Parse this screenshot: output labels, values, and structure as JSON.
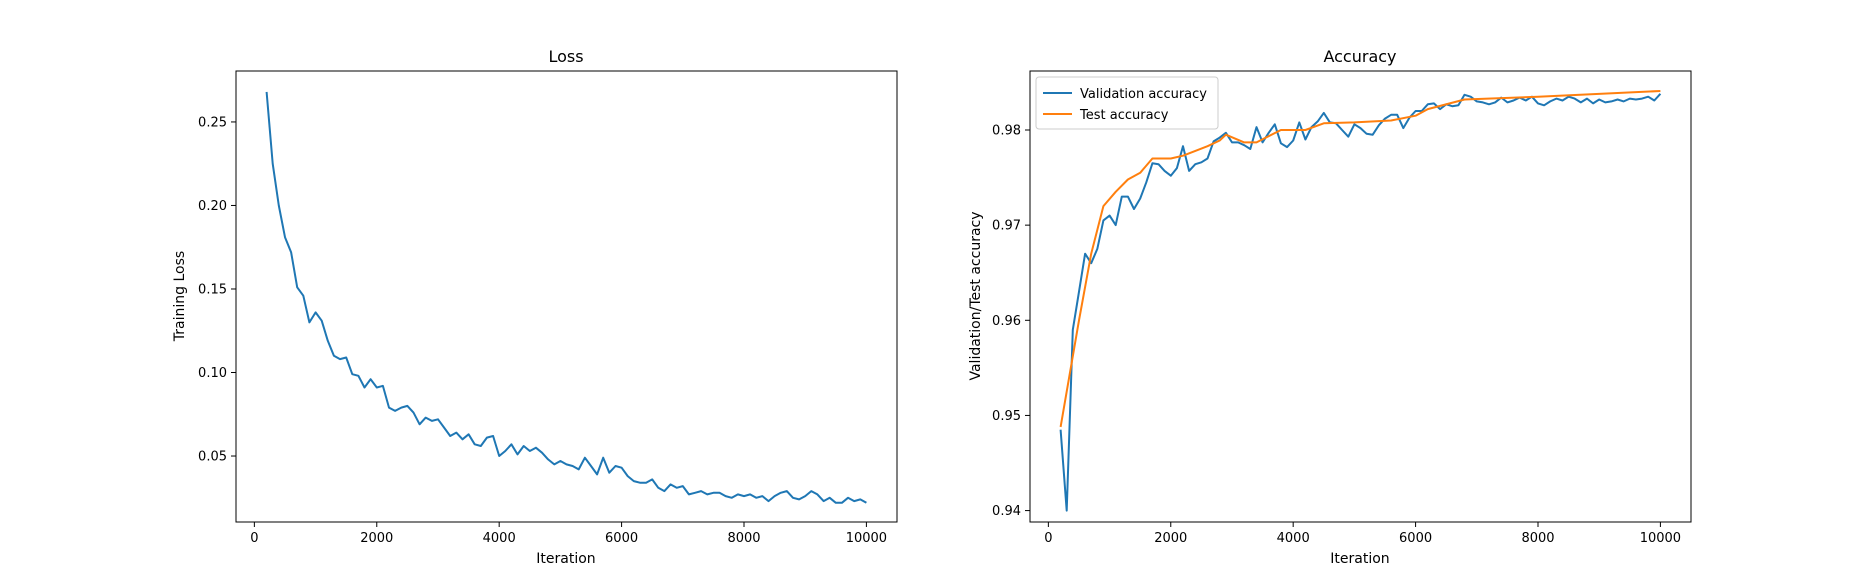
{
  "chart_data": [
    {
      "type": "line",
      "title": "Loss",
      "xlabel": "Iteration",
      "ylabel": "Training Loss",
      "xlim": [
        -300,
        10500
      ],
      "ylim": [
        0.0105,
        0.2805
      ],
      "xticks": [
        0,
        2000,
        4000,
        6000,
        8000,
        10000
      ],
      "xtick_labels": [
        "0",
        "2000",
        "4000",
        "6000",
        "8000",
        "10000"
      ],
      "yticks": [
        0.05,
        0.1,
        0.15,
        0.2,
        0.25
      ],
      "ytick_labels": [
        "0.05",
        "0.10",
        "0.15",
        "0.20",
        "0.25"
      ],
      "grid": false,
      "series": [
        {
          "color": "#1f77b4",
          "x": [
            200,
            300,
            400,
            500,
            600,
            700,
            800,
            900,
            1000,
            1100,
            1200,
            1300,
            1400,
            1500,
            1600,
            1700,
            1800,
            1900,
            2000,
            2100,
            2200,
            2300,
            2400,
            2500,
            2600,
            2700,
            2800,
            2900,
            3000,
            3100,
            3200,
            3300,
            3400,
            3500,
            3600,
            3700,
            3800,
            3900,
            4000,
            4100,
            4200,
            4300,
            4400,
            4500,
            4600,
            4700,
            4800,
            4900,
            5000,
            5100,
            5200,
            5300,
            5400,
            5500,
            5600,
            5700,
            5800,
            5900,
            6000,
            6100,
            6200,
            6300,
            6400,
            6500,
            6600,
            6700,
            6800,
            6900,
            7000,
            7100,
            7200,
            7300,
            7400,
            7500,
            7600,
            7700,
            7800,
            7900,
            8000,
            8100,
            8200,
            8300,
            8400,
            8500,
            8600,
            8700,
            8800,
            8900,
            9000,
            9100,
            9200,
            9300,
            9400,
            9500,
            9600,
            9700,
            9800,
            9900,
            10000
          ],
          "values": [
            0.268,
            0.225,
            0.2,
            0.181,
            0.172,
            0.151,
            0.146,
            0.13,
            0.136,
            0.131,
            0.119,
            0.11,
            0.108,
            0.109,
            0.099,
            0.098,
            0.091,
            0.096,
            0.091,
            0.092,
            0.079,
            0.077,
            0.079,
            0.08,
            0.076,
            0.069,
            0.073,
            0.071,
            0.072,
            0.067,
            0.062,
            0.064,
            0.06,
            0.063,
            0.057,
            0.056,
            0.061,
            0.062,
            0.05,
            0.053,
            0.057,
            0.051,
            0.056,
            0.053,
            0.055,
            0.052,
            0.048,
            0.045,
            0.047,
            0.045,
            0.044,
            0.042,
            0.049,
            0.044,
            0.039,
            0.049,
            0.04,
            0.044,
            0.043,
            0.038,
            0.035,
            0.034,
            0.034,
            0.036,
            0.031,
            0.029,
            0.033,
            0.031,
            0.032,
            0.027,
            0.028,
            0.029,
            0.027,
            0.028,
            0.028,
            0.026,
            0.025,
            0.027,
            0.026,
            0.027,
            0.025,
            0.026,
            0.023,
            0.026,
            0.028,
            0.029,
            0.025,
            0.024,
            0.026,
            0.029,
            0.027,
            0.023,
            0.025,
            0.022,
            0.022,
            0.025,
            0.023,
            0.024,
            0.022
          ]
        }
      ]
    },
    {
      "type": "line",
      "title": "Accuracy",
      "xlabel": "Iteration",
      "ylabel": "Validation/Test accuracy",
      "xlim": [
        -300,
        10500
      ],
      "ylim": [
        0.9388,
        0.9862
      ],
      "xticks": [
        0,
        2000,
        4000,
        6000,
        8000,
        10000
      ],
      "xtick_labels": [
        "0",
        "2000",
        "4000",
        "6000",
        "8000",
        "10000"
      ],
      "yticks": [
        0.94,
        0.95,
        0.96,
        0.97,
        0.98
      ],
      "ytick_labels": [
        "0.94",
        "0.95",
        "0.96",
        "0.97",
        "0.98"
      ],
      "grid": false,
      "legend_position": "top-left",
      "series": [
        {
          "name": "Validation accuracy",
          "color": "#1f77b4",
          "x": [
            200,
            300,
            400,
            500,
            600,
            700,
            800,
            900,
            1000,
            1100,
            1200,
            1300,
            1400,
            1500,
            1600,
            1700,
            1800,
            1900,
            2000,
            2100,
            2200,
            2300,
            2400,
            2500,
            2600,
            2700,
            2800,
            2900,
            3000,
            3100,
            3200,
            3300,
            3400,
            3500,
            3600,
            3700,
            3800,
            3900,
            4000,
            4100,
            4200,
            4300,
            4400,
            4500,
            4600,
            4700,
            4800,
            4900,
            5000,
            5100,
            5200,
            5300,
            5400,
            5500,
            5600,
            5700,
            5800,
            5900,
            6000,
            6100,
            6200,
            6300,
            6400,
            6500,
            6600,
            6700,
            6800,
            6900,
            7000,
            7100,
            7200,
            7300,
            7400,
            7500,
            7600,
            7700,
            7800,
            7900,
            8000,
            8100,
            8200,
            8300,
            8400,
            8500,
            8600,
            8700,
            8800,
            8900,
            9000,
            9100,
            9200,
            9300,
            9400,
            9500,
            9600,
            9700,
            9800,
            9900,
            10000
          ],
          "values": [
            0.9485,
            0.94,
            0.959,
            0.963,
            0.967,
            0.966,
            0.9675,
            0.9705,
            0.971,
            0.97,
            0.973,
            0.973,
            0.9717,
            0.9728,
            0.9745,
            0.9765,
            0.9764,
            0.9757,
            0.9752,
            0.976,
            0.9783,
            0.9757,
            0.9764,
            0.9766,
            0.977,
            0.9788,
            0.9792,
            0.9797,
            0.9787,
            0.9787,
            0.9784,
            0.978,
            0.9803,
            0.9787,
            0.9797,
            0.9806,
            0.9786,
            0.9782,
            0.9789,
            0.9808,
            0.979,
            0.9803,
            0.9809,
            0.9818,
            0.9808,
            0.9807,
            0.98,
            0.9793,
            0.9806,
            0.9802,
            0.9796,
            0.9795,
            0.9805,
            0.9812,
            0.9816,
            0.9816,
            0.9802,
            0.9813,
            0.982,
            0.982,
            0.9827,
            0.9828,
            0.9822,
            0.9827,
            0.9825,
            0.9826,
            0.9837,
            0.9835,
            0.983,
            0.9829,
            0.9827,
            0.9829,
            0.9834,
            0.9829,
            0.9831,
            0.9834,
            0.9831,
            0.9835,
            0.9828,
            0.9826,
            0.983,
            0.9833,
            0.9831,
            0.9835,
            0.9833,
            0.9829,
            0.9833,
            0.9828,
            0.9832,
            0.9829,
            0.983,
            0.9832,
            0.983,
            0.9833,
            0.9832,
            0.9833,
            0.9835,
            0.9831,
            0.9838
          ]
        },
        {
          "name": "Test accuracy",
          "color": "#ff7f0e",
          "x": [
            200,
            500,
            700,
            900,
            1100,
            1300,
            1500,
            1700,
            2000,
            2200,
            2400,
            2600,
            2800,
            2900,
            3200,
            3400,
            3800,
            4200,
            4500,
            5000,
            5600,
            6000,
            6200,
            6800,
            8000,
            10000
          ],
          "values": [
            0.9488,
            0.96,
            0.967,
            0.972,
            0.9735,
            0.9748,
            0.9755,
            0.977,
            0.977,
            0.9773,
            0.9778,
            0.9783,
            0.9789,
            0.9795,
            0.9787,
            0.9787,
            0.98,
            0.98,
            0.9807,
            0.9808,
            0.981,
            0.9815,
            0.9822,
            0.9832,
            0.9835,
            0.9841
          ]
        }
      ]
    }
  ]
}
